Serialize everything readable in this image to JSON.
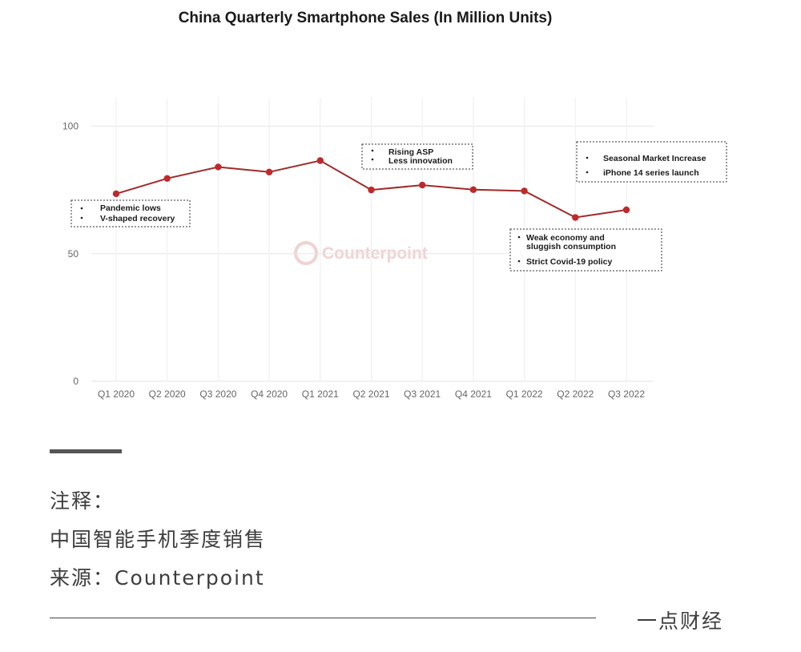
{
  "chart_data": {
    "type": "line",
    "title": "China Quarterly Smartphone Sales (In Million Units)",
    "xlabel": "",
    "ylabel": "",
    "ylim": [
      0,
      110
    ],
    "yticks": [
      0,
      50,
      100
    ],
    "grid": true,
    "line_color": "#9e2a2b",
    "marker_color": "#c0282c",
    "categories": [
      "Q1 2020",
      "Q2 2020",
      "Q3 2020",
      "Q4 2020",
      "Q1 2021",
      "Q2 2021",
      "Q3 2021",
      "Q4 2021",
      "Q1 2022",
      "Q2 2022",
      "Q3 2022"
    ],
    "series": [
      {
        "values": [
          73.5,
          79.5,
          84,
          82,
          86.5,
          75,
          76.9,
          75.1,
          74.6,
          64.2,
          67.2
        ]
      }
    ],
    "annotations": [
      {
        "lines": [
          "Pandemic lows",
          "V-shaped recovery"
        ]
      },
      {
        "lines": [
          "Rising ASP",
          "Less innovation"
        ]
      },
      {
        "lines": [
          "Seasonal Market Increase",
          "iPhone 14 series launch"
        ]
      },
      {
        "lines": [
          "Weak economy and",
          "sluggish consumption",
          "Strict Covid-19 policy"
        ]
      }
    ],
    "watermark": "Counterpoint"
  },
  "footer": {
    "note_label": "注释：",
    "note_desc": "中国智能手机季度销售",
    "source": "来源：Counterpoint",
    "brand": "一点财经"
  }
}
